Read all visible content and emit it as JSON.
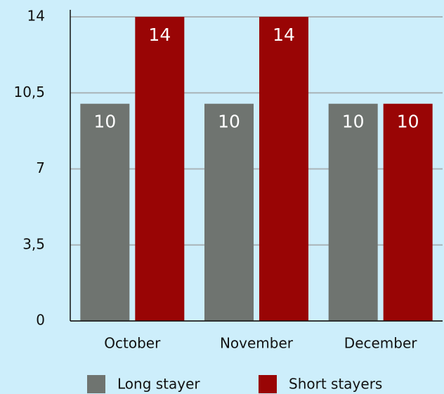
{
  "chart_data": {
    "type": "bar",
    "categories": [
      "October",
      "November",
      "December"
    ],
    "series": [
      {
        "name": "Long stayer",
        "color": "#6f7470",
        "values": [
          10,
          10,
          10
        ]
      },
      {
        "name": "Short stayers",
        "color": "#990505",
        "values": [
          14,
          14,
          10
        ]
      }
    ],
    "ylim": [
      0,
      14
    ],
    "yticks": [
      0,
      {
        "value": 3.5,
        "label": "3,5"
      },
      7,
      {
        "value": 10.5,
        "label": "10,5"
      },
      14
    ],
    "grid": true,
    "legend": "bottom"
  }
}
